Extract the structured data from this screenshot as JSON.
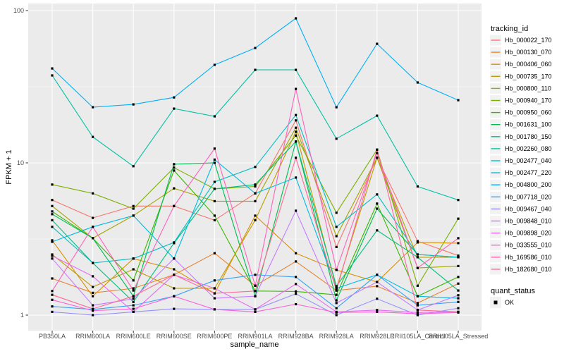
{
  "figure": {
    "xlabel": "sample_name",
    "ylabel": "FPKM + 1",
    "tracking_legend_title": "tracking_id",
    "quant_legend_title": "quant_status",
    "quant_legend_item": "OK"
  },
  "chart_data": {
    "type": "line",
    "title": "",
    "xlabel": "sample_name",
    "ylabel": "FPKM + 1",
    "y_scale": "log10",
    "y_ticks": [
      1,
      10,
      100
    ],
    "ylim": [
      1,
      100
    ],
    "grid": "on",
    "panel_bg": "#EBEBEB",
    "grid_color": "#FFFFFF",
    "marker_color": "#000000",
    "marker_shape": "square",
    "legend_position": "right",
    "categories": [
      "PB350LA",
      "RRIM600LA",
      "RRIM600LE",
      "RRIM600SE",
      "RRIM600PE",
      "RRIM901LA",
      "RRIM928BA",
      "RRIM928LA",
      "RRIM928LE",
      "RRII105LA_Control",
      "RRII105LA_Stressed"
    ],
    "series": [
      {
        "name": "Hb_000022_170",
        "color": "#F8766D",
        "values": [
          5.7,
          4.35,
          5.2,
          5.2,
          4.2,
          6.3,
          19.0,
          2.8,
          10.8,
          3.06,
          2.46
        ]
      },
      {
        "name": "Hb_000130_070",
        "color": "#EA8331",
        "values": [
          1.74,
          1.4,
          1.5,
          1.84,
          2.55,
          1.56,
          2.25,
          1.45,
          1.55,
          1.2,
          1.61
        ]
      },
      {
        "name": "Hb_000406_060",
        "color": "#D89000",
        "values": [
          3.1,
          1.33,
          2.35,
          2.0,
          1.39,
          4.5,
          2.55,
          1.98,
          1.65,
          3.0,
          2.97
        ]
      },
      {
        "name": "Hb_000735_170",
        "color": "#C09B00",
        "values": [
          2.5,
          1.53,
          2.0,
          1.5,
          1.5,
          4.2,
          16.0,
          1.5,
          10.8,
          2.4,
          2.4
        ]
      },
      {
        "name": "Hb_000800_110",
        "color": "#A3A500",
        "values": [
          5.2,
          3.2,
          4.5,
          6.8,
          5.6,
          5.6,
          17.0,
          3.3,
          10.8,
          2.04,
          2.1
        ]
      },
      {
        "name": "Hb_000940_170",
        "color": "#7CAE00",
        "values": [
          7.2,
          6.3,
          5.0,
          9.3,
          6.75,
          7.0,
          15.1,
          4.7,
          12.2,
          1.56,
          4.3
        ]
      },
      {
        "name": "Hb_000950_060",
        "color": "#39B600",
        "values": [
          4.8,
          3.2,
          1.69,
          8.9,
          4.5,
          1.44,
          1.43,
          1.36,
          5.4,
          1.33,
          1.78
        ]
      },
      {
        "name": "Hb_001631_100",
        "color": "#00BB4E",
        "values": [
          4.6,
          3.2,
          1.33,
          9.8,
          10.0,
          1.33,
          13.8,
          1.25,
          5.0,
          2.5,
          2.4
        ]
      },
      {
        "name": "Hb_001780_150",
        "color": "#00BF7D",
        "values": [
          4.2,
          2.2,
          1.22,
          2.97,
          6.75,
          7.2,
          13.8,
          1.55,
          3.6,
          2.4,
          1.45
        ]
      },
      {
        "name": "Hb_002260_080",
        "color": "#00C1A3",
        "values": [
          37.5,
          14.8,
          9.5,
          22.7,
          20.2,
          40.8,
          40.8,
          14.4,
          20.4,
          7.0,
          5.7
        ]
      },
      {
        "name": "Hb_002477_040",
        "color": "#00BFC4",
        "values": [
          3.8,
          2.2,
          2.35,
          3.0,
          7.5,
          9.4,
          20.6,
          3.8,
          6.2,
          2.5,
          2.4
        ]
      },
      {
        "name": "Hb_002477_220",
        "color": "#00BAE0",
        "values": [
          3.03,
          3.8,
          4.5,
          2.35,
          10.5,
          6.3,
          8.0,
          1.5,
          1.84,
          1.33,
          1.29
        ]
      },
      {
        "name": "Hb_004800_200",
        "color": "#00B0F6",
        "values": [
          41.7,
          23.2,
          24.2,
          26.9,
          44.0,
          56.8,
          88.9,
          23.2,
          60.5,
          33.7,
          25.8
        ]
      },
      {
        "name": "Hb_007718_020",
        "color": "#35A2FF",
        "values": [
          1.14,
          1.09,
          1.16,
          1.33,
          1.69,
          1.84,
          1.78,
          1.11,
          1.84,
          1.16,
          1.22
        ]
      },
      {
        "name": "Hb_009467_040",
        "color": "#9590FF",
        "values": [
          1.05,
          1.0,
          1.05,
          1.1,
          1.09,
          1.09,
          1.38,
          1.0,
          1.28,
          1.0,
          1.11
        ]
      },
      {
        "name": "Hb_009848_010",
        "color": "#C77CFF",
        "values": [
          2.35,
          1.16,
          1.28,
          2.35,
          1.29,
          1.33,
          4.85,
          1.2,
          1.65,
          1.08,
          1.35
        ]
      },
      {
        "name": "Hb_009898_020",
        "color": "#E76BF3",
        "values": [
          2.45,
          1.8,
          1.05,
          1.84,
          1.5,
          1.09,
          1.6,
          1.05,
          1.08,
          1.04,
          1.05
        ]
      },
      {
        "name": "Hb_033555_010",
        "color": "#FA62DB",
        "values": [
          1.26,
          1.07,
          1.1,
          1.33,
          1.09,
          1.05,
          1.18,
          1.04,
          1.05,
          1.02,
          1.04
        ]
      },
      {
        "name": "Hb_169586_010",
        "color": "#FF62BC",
        "values": [
          1.44,
          3.8,
          1.45,
          5.2,
          12.4,
          1.56,
          30.6,
          1.98,
          11.6,
          2.04,
          3.2
        ]
      },
      {
        "name": "Hb_182680_010",
        "color": "#FF6A98",
        "values": [
          1.36,
          1.1,
          1.33,
          1.84,
          1.39,
          1.44,
          10.8,
          1.45,
          12.2,
          1.08,
          1.05
        ]
      }
    ],
    "quant_status": {
      "label": "OK",
      "marker": "black-square"
    }
  }
}
